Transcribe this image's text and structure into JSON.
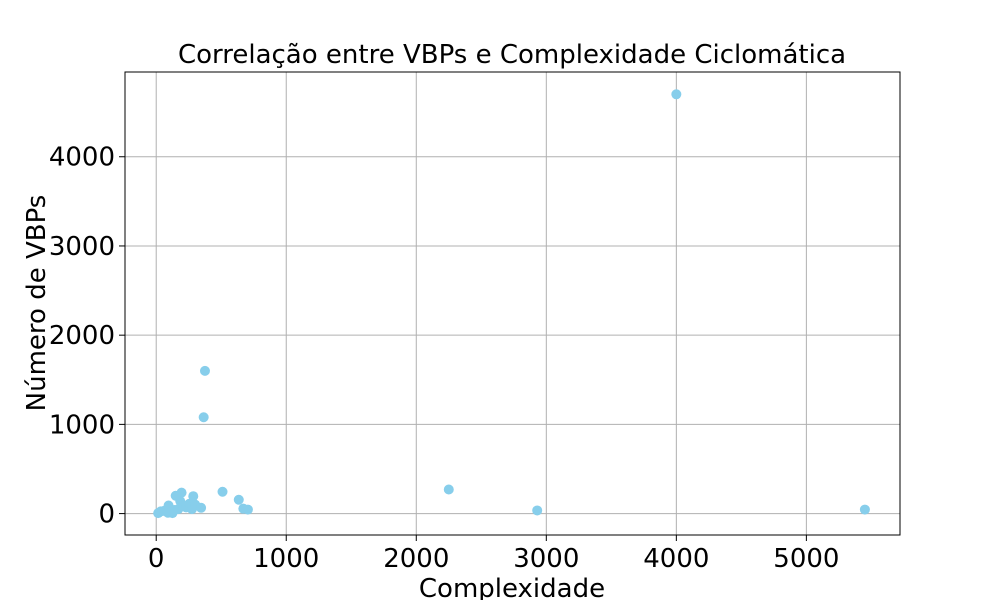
{
  "chart_data": {
    "type": "scatter",
    "title": "Correlação entre VBPs e Complexidade Ciclomática",
    "xlabel": "Complexidade",
    "ylabel": "Número de VBPs",
    "xlim": [
      -240,
      5720
    ],
    "ylim": [
      -240,
      4950
    ],
    "xticks": [
      0,
      1000,
      2000,
      3000,
      4000,
      5000
    ],
    "yticks": [
      0,
      1000,
      2000,
      3000,
      4000
    ],
    "grid": true,
    "point_color": "#87ceeb",
    "points": [
      {
        "x": 15,
        "y": 5
      },
      {
        "x": 35,
        "y": 25
      },
      {
        "x": 60,
        "y": 30
      },
      {
        "x": 90,
        "y": 10
      },
      {
        "x": 95,
        "y": 90
      },
      {
        "x": 110,
        "y": 15
      },
      {
        "x": 125,
        "y": 5
      },
      {
        "x": 140,
        "y": 40
      },
      {
        "x": 150,
        "y": 200
      },
      {
        "x": 170,
        "y": 50
      },
      {
        "x": 185,
        "y": 140
      },
      {
        "x": 195,
        "y": 235
      },
      {
        "x": 210,
        "y": 90
      },
      {
        "x": 230,
        "y": 70
      },
      {
        "x": 255,
        "y": 110
      },
      {
        "x": 275,
        "y": 50
      },
      {
        "x": 285,
        "y": 195
      },
      {
        "x": 300,
        "y": 100
      },
      {
        "x": 345,
        "y": 65
      },
      {
        "x": 365,
        "y": 1080
      },
      {
        "x": 375,
        "y": 1600
      },
      {
        "x": 510,
        "y": 245
      },
      {
        "x": 635,
        "y": 155
      },
      {
        "x": 670,
        "y": 55
      },
      {
        "x": 705,
        "y": 45
      },
      {
        "x": 2250,
        "y": 270
      },
      {
        "x": 2930,
        "y": 35
      },
      {
        "x": 4000,
        "y": 4700
      },
      {
        "x": 5450,
        "y": 45
      }
    ]
  }
}
